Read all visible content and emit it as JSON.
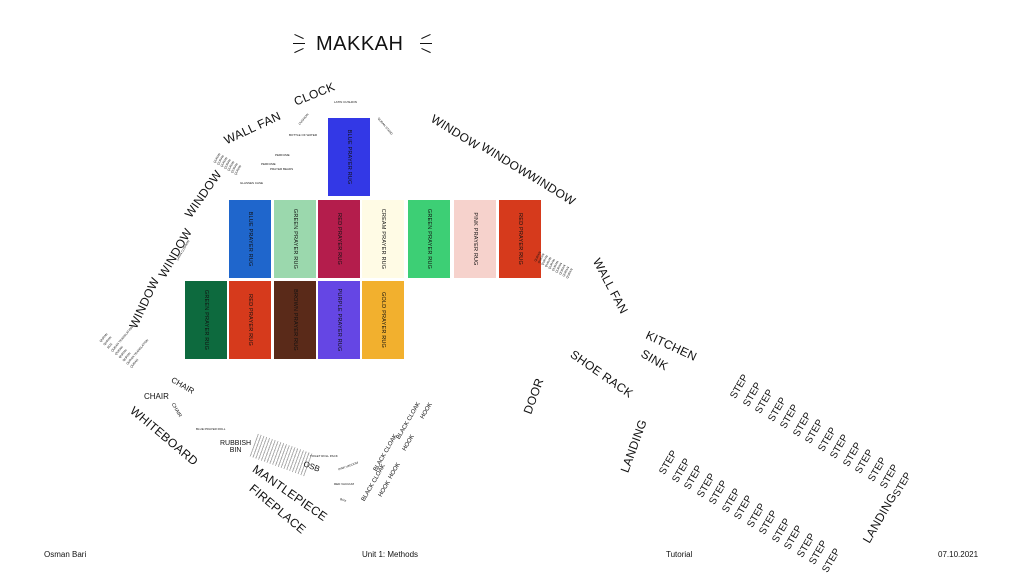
{
  "title": "MAKKAH",
  "footer": {
    "author": "Osman Bari",
    "unit": "Unit 1: Methods",
    "type": "Tutorial",
    "date": "07.10.2021"
  },
  "colors": {
    "blue_top": "#3338e6",
    "blue": "#1f66cc",
    "green_light": "#9bd8ad",
    "red_crimson": "#b41d4c",
    "cream": "#fffbe5",
    "green_bright": "#3dcf75",
    "pink": "#f6d2cc",
    "red_orange": "#d63a1c",
    "green_dark": "#0d6a3e",
    "brown": "#5a2a19",
    "purple": "#6546e4",
    "gold": "#f2b02e"
  },
  "rugs": {
    "r1": {
      "label": "BLUE PRAYER RUG"
    },
    "r2": {
      "label": "BLUE PRAYER RUG"
    },
    "r3": {
      "label": "GREEN PRAYER RUG"
    },
    "r4": {
      "label": "RED PRAYER RUG"
    },
    "r5": {
      "label": "CREAM PRAYER RUG"
    },
    "r6": {
      "label": "GREEN PRAYER RUG"
    },
    "r7": {
      "label": "PINK PRAYER RUG"
    },
    "r8": {
      "label": "RED PRAYER RUG"
    },
    "r9": {
      "label": "GREEN PRAYER RUG"
    },
    "r10": {
      "label": "RED PRAYER RUG"
    },
    "r11": {
      "label": "BROWN PRAYER RUG"
    },
    "r12": {
      "label": "PURPLE PRAYER RUG"
    },
    "r13": {
      "label": "GOLD PRAYER RUG"
    }
  },
  "labels": {
    "clock": "CLOCK",
    "wall_fan_left": "WALL FAN",
    "window_l1": "WINDOW",
    "window_l2": "WINDOW",
    "window_l3": "WINDOW",
    "window_r1": "WINDOW",
    "window_r2": "WINDOW",
    "window_r3": "WINDOW",
    "wall_fan_right": "WALL FAN",
    "kitchen": "KITCHEN",
    "sink": "SINK",
    "shoe_rack": "SHOE RACK",
    "door": "DOOR",
    "landing_left": "LANDING",
    "landing_right": "LANDING",
    "whiteboard": "WHITEBOARD",
    "chair1": "CHAIR",
    "chair2": "CHAIR",
    "chair3": "CHAIR",
    "rubbish_bin": "RUBBISH\nBIN",
    "fireplace": "FIREPLACE",
    "mantlepiece": "MANTLEPIECE",
    "osb": "OSB",
    "hook1": "HOOK",
    "hook2": "HOOK",
    "hook3": "HOOK",
    "black_cloak1": "BLACK CLOAK",
    "black_cloak2": "BLACK CLOAK",
    "black_cloak3": "BLACK CLOAK",
    "latin_cushion_top": "LATIN CUSHION",
    "latin_cushion_left": "LATIN CUSHION",
    "bottle_of_water": "BOTTLE OF WATER",
    "glasses_case": "GLASSES CASE",
    "perfume": "PERFUME",
    "perfume2": "PERFUME",
    "prayer_beads": "PRAYER BEADS",
    "blue_prayer_roll": "BLUE PRAYER ROLL",
    "toilet_roll_pack": "TOILET ROLL PACK",
    "pink_vacuum": "PINK VACUUM",
    "red_vacuum": "RED VACUUM",
    "quran_stand": "QURAN STAND",
    "cushion": "CUSHION",
    "translation": "QURAN TRANSLATION",
    "box": "BOX",
    "quran": "QURAN"
  },
  "steps": {
    "label": "STEP"
  }
}
